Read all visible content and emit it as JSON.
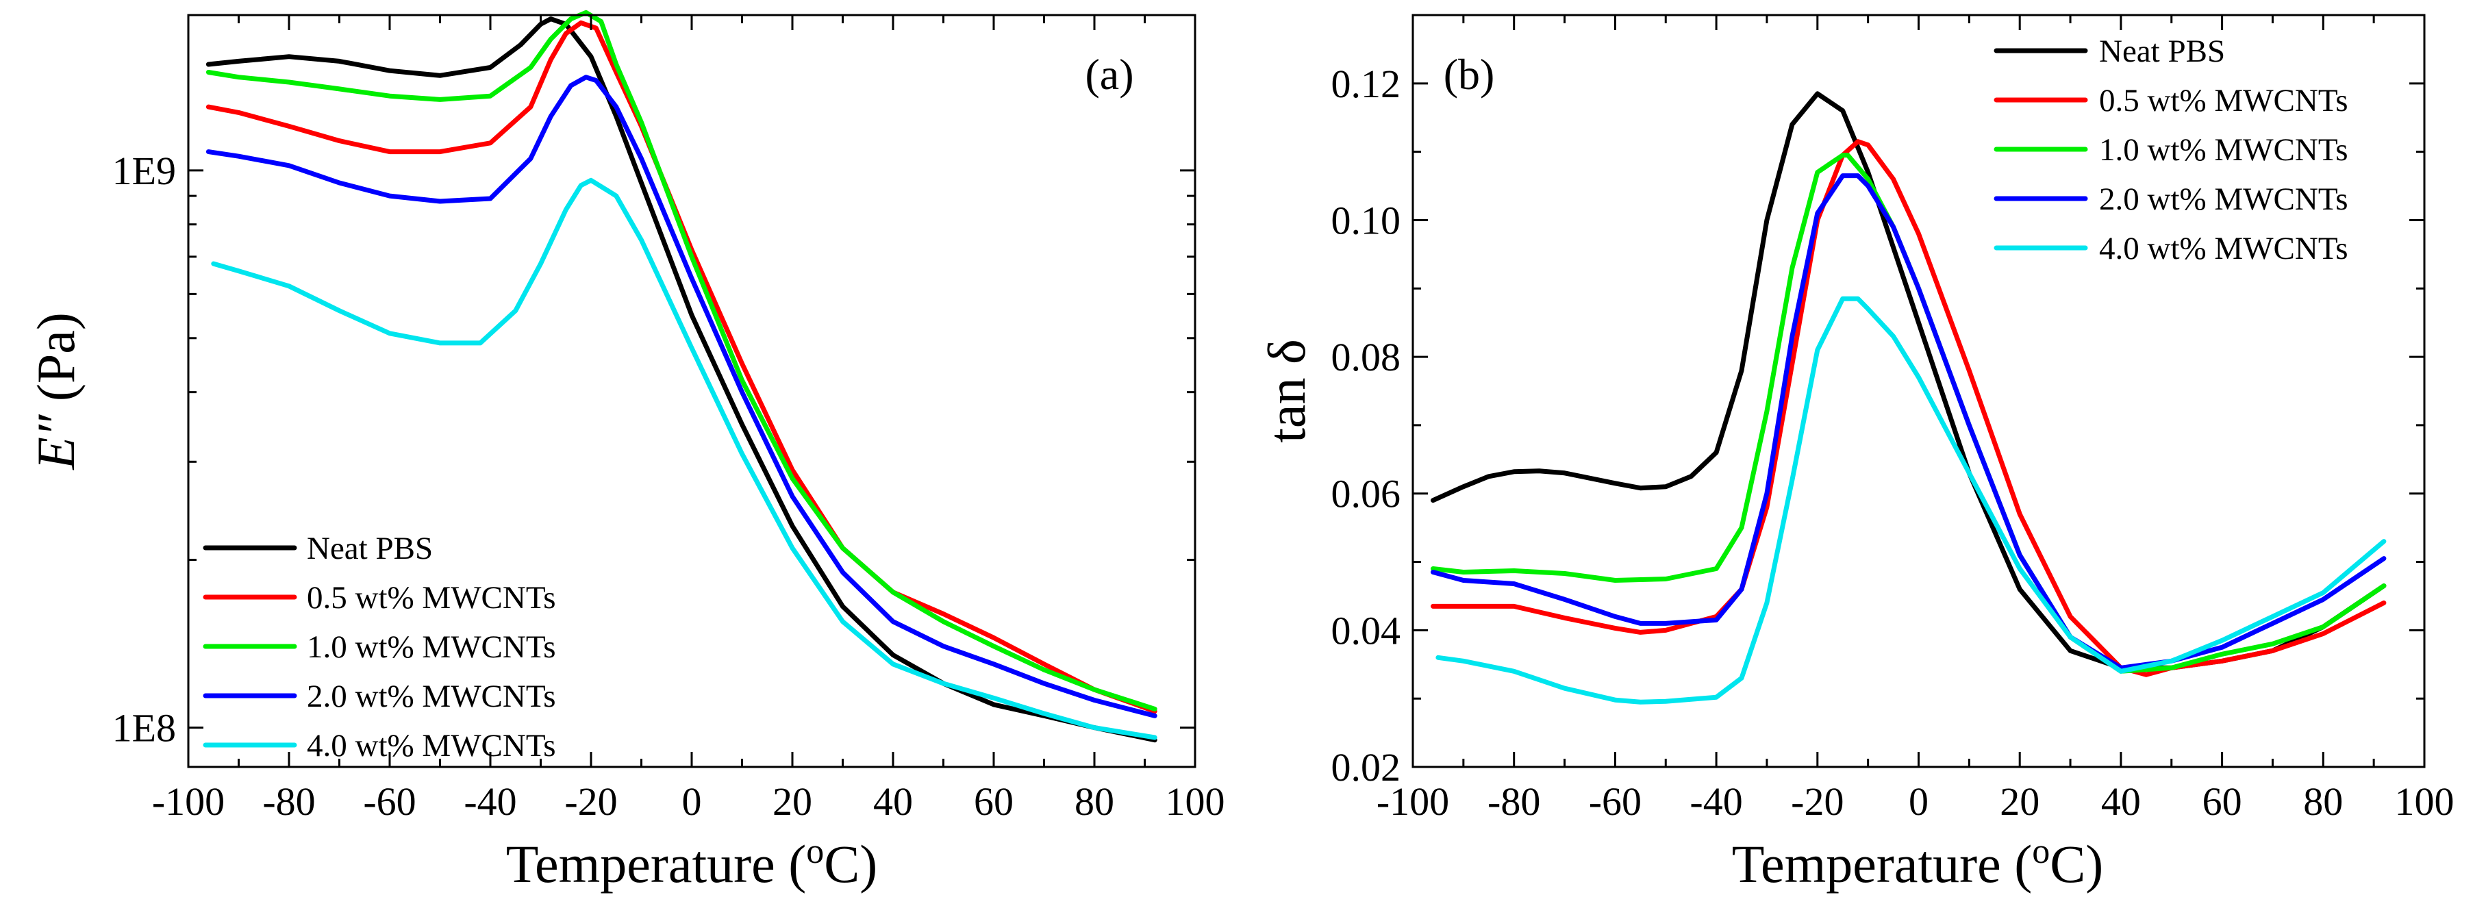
{
  "chart_data": [
    {
      "type": "line",
      "panel_label": "(a)",
      "xlabel": "Temperature (°C)",
      "xlabel_parts": {
        "prefix": "Temperature (",
        "sup": "o",
        "suffix": "C)"
      },
      "ylabel": "E″ (Pa)",
      "ylabel_parts": {
        "symbol": "E″",
        "unit": " (Pa)"
      },
      "x_ticks": [
        "-100",
        "-80",
        "-60",
        "-40",
        "-20",
        "0",
        "20",
        "40",
        "60",
        "80",
        "100"
      ],
      "x_tick_values": [
        -100,
        -80,
        -60,
        -40,
        -20,
        0,
        20,
        40,
        60,
        80,
        100
      ],
      "y_ticks": [
        "1E8",
        "1E9"
      ],
      "y_tick_values": [
        100000000,
        1000000000
      ],
      "xlim": [
        -100,
        100
      ],
      "ylim": [
        85000000,
        1900000000
      ],
      "yscale": "log",
      "legend_position": "lower-left",
      "series": [
        {
          "name": "Neat PBS",
          "color": "#000000",
          "x": [
            -96,
            -90,
            -80,
            -70,
            -60,
            -50,
            -40,
            -34,
            -30,
            -28,
            -25,
            -20,
            -15,
            -10,
            0,
            10,
            20,
            30,
            40,
            50,
            60,
            70,
            80,
            92
          ],
          "y": [
            1550000000.0,
            1570000000.0,
            1600000000.0,
            1570000000.0,
            1510000000.0,
            1480000000.0,
            1530000000.0,
            1680000000.0,
            1830000000.0,
            1870000000.0,
            1830000000.0,
            1600000000.0,
            1250000000.0,
            950000000.0,
            550000000.0,
            350000000.0,
            230000000.0,
            165000000.0,
            135000000.0,
            120000000.0,
            110000000.0,
            105000000.0,
            100000000.0,
            95000000.0
          ]
        },
        {
          "name": "0.5 wt% MWCNTs",
          "color": "#ff0000",
          "x": [
            -96,
            -90,
            -80,
            -70,
            -60,
            -50,
            -40,
            -32,
            -28,
            -25,
            -22,
            -19,
            -15,
            -10,
            0,
            10,
            20,
            30,
            40,
            50,
            60,
            70,
            80,
            92
          ],
          "y": [
            1300000000.0,
            1270000000.0,
            1200000000.0,
            1130000000.0,
            1080000000.0,
            1080000000.0,
            1120000000.0,
            1300000000.0,
            1580000000.0,
            1760000000.0,
            1840000000.0,
            1800000000.0,
            1500000000.0,
            1200000000.0,
            720000000.0,
            450000000.0,
            290000000.0,
            210000000.0,
            175000000.0,
            160000000.0,
            145000000.0,
            130000000.0,
            117000000.0,
            107000000.0
          ]
        },
        {
          "name": "1.0 wt% MWCNTs",
          "color": "#00ee00",
          "x": [
            -96,
            -90,
            -80,
            -70,
            -60,
            -50,
            -40,
            -32,
            -28,
            -24,
            -21,
            -18,
            -15,
            -10,
            0,
            10,
            20,
            30,
            40,
            50,
            60,
            70,
            80,
            92
          ],
          "y": [
            1500000000.0,
            1470000000.0,
            1440000000.0,
            1400000000.0,
            1360000000.0,
            1340000000.0,
            1360000000.0,
            1530000000.0,
            1720000000.0,
            1870000000.0,
            1920000000.0,
            1850000000.0,
            1550000000.0,
            1220000000.0,
            700000000.0,
            420000000.0,
            280000000.0,
            210000000.0,
            175000000.0,
            155000000.0,
            140000000.0,
            127000000.0,
            117000000.0,
            108000000.0
          ]
        },
        {
          "name": "2.0 wt% MWCNTs",
          "color": "#0000ff",
          "x": [
            -96,
            -90,
            -80,
            -70,
            -60,
            -50,
            -40,
            -32,
            -28,
            -24,
            -21,
            -19,
            -15,
            -10,
            0,
            10,
            20,
            30,
            40,
            50,
            60,
            70,
            80,
            92
          ],
          "y": [
            1080000000.0,
            1060000000.0,
            1020000000.0,
            950000000.0,
            900000000.0,
            880000000.0,
            890000000.0,
            1050000000.0,
            1250000000.0,
            1420000000.0,
            1470000000.0,
            1450000000.0,
            1300000000.0,
            1050000000.0,
            640000000.0,
            400000000.0,
            260000000.0,
            190000000.0,
            155000000.0,
            140000000.0,
            130000000.0,
            120000000.0,
            112000000.0,
            105000000.0
          ]
        },
        {
          "name": "4.0 wt% MWCNTs",
          "color": "#00e5ee",
          "x": [
            -95,
            -90,
            -80,
            -70,
            -60,
            -50,
            -42,
            -35,
            -30,
            -25,
            -22,
            -20,
            -15,
            -10,
            0,
            10,
            20,
            30,
            40,
            50,
            60,
            70,
            80,
            92
          ],
          "y": [
            680000000.0,
            660000000.0,
            620000000.0,
            560000000.0,
            510000000.0,
            490000000.0,
            490000000.0,
            560000000.0,
            680000000.0,
            850000000.0,
            940000000.0,
            960000000.0,
            900000000.0,
            750000000.0,
            480000000.0,
            310000000.0,
            210000000.0,
            155000000.0,
            130000000.0,
            120000000.0,
            113000000.0,
            106000000.0,
            100000000.0,
            96000000.0
          ]
        }
      ]
    },
    {
      "type": "line",
      "panel_label": "(b)",
      "xlabel": "Temperature (°C)",
      "xlabel_parts": {
        "prefix": "Temperature (",
        "sup": "o",
        "suffix": "C)"
      },
      "ylabel": "tan δ",
      "x_ticks": [
        "-100",
        "-80",
        "-60",
        "-40",
        "-20",
        "0",
        "20",
        "40",
        "60",
        "80",
        "100"
      ],
      "x_tick_values": [
        -100,
        -80,
        -60,
        -40,
        -20,
        0,
        20,
        40,
        60,
        80,
        100
      ],
      "y_ticks": [
        "0.02",
        "0.04",
        "0.06",
        "0.08",
        "0.10",
        "0.12"
      ],
      "y_tick_values": [
        0.02,
        0.04,
        0.06,
        0.08,
        0.1,
        0.12
      ],
      "xlim": [
        -100,
        100
      ],
      "ylim": [
        0.02,
        0.13
      ],
      "yscale": "linear",
      "legend_position": "top-right",
      "series": [
        {
          "name": "Neat PBS",
          "color": "#000000",
          "x": [
            -96,
            -90,
            -85,
            -80,
            -75,
            -70,
            -60,
            -55,
            -50,
            -45,
            -40,
            -35,
            -30,
            -25,
            -20,
            -15,
            -10,
            -5,
            0,
            10,
            20,
            30,
            40,
            50,
            60,
            70,
            80,
            92
          ],
          "y": [
            0.059,
            0.061,
            0.0625,
            0.0632,
            0.0633,
            0.063,
            0.0615,
            0.0608,
            0.061,
            0.0625,
            0.066,
            0.078,
            0.1,
            0.114,
            0.1185,
            0.116,
            0.107,
            0.096,
            0.085,
            0.063,
            0.046,
            0.037,
            0.0345,
            0.0345,
            0.0355,
            0.037,
            0.0405,
            0.0465
          ]
        },
        {
          "name": "0.5 wt% MWCNTs",
          "color": "#ff0000",
          "x": [
            -96,
            -90,
            -80,
            -70,
            -60,
            -55,
            -50,
            -40,
            -35,
            -30,
            -25,
            -20,
            -15,
            -12,
            -10,
            -5,
            0,
            10,
            20,
            30,
            40,
            45,
            50,
            60,
            70,
            80,
            92
          ],
          "y": [
            0.0435,
            0.0435,
            0.0435,
            0.0418,
            0.0403,
            0.0397,
            0.04,
            0.042,
            0.046,
            0.058,
            0.079,
            0.1,
            0.1095,
            0.1115,
            0.111,
            0.106,
            0.098,
            0.078,
            0.057,
            0.042,
            0.0345,
            0.0335,
            0.0345,
            0.0355,
            0.037,
            0.0395,
            0.044
          ]
        },
        {
          "name": "1.0 wt% MWCNTs",
          "color": "#00ee00",
          "x": [
            -96,
            -90,
            -80,
            -70,
            -60,
            -50,
            -40,
            -35,
            -30,
            -25,
            -20,
            -15,
            -14,
            -10,
            -5,
            0,
            10,
            20,
            30,
            40,
            50,
            60,
            70,
            80,
            92
          ],
          "y": [
            0.049,
            0.0485,
            0.0487,
            0.0483,
            0.0473,
            0.0475,
            0.049,
            0.055,
            0.072,
            0.093,
            0.107,
            0.1095,
            0.1095,
            0.106,
            0.099,
            0.09,
            0.07,
            0.051,
            0.039,
            0.034,
            0.0345,
            0.0365,
            0.038,
            0.0405,
            0.0465
          ]
        },
        {
          "name": "2.0 wt% MWCNTs",
          "color": "#0000ff",
          "x": [
            -96,
            -90,
            -80,
            -70,
            -60,
            -55,
            -50,
            -40,
            -35,
            -30,
            -25,
            -20,
            -15,
            -12,
            -10,
            -5,
            0,
            10,
            20,
            30,
            40,
            50,
            60,
            70,
            80,
            92
          ],
          "y": [
            0.0485,
            0.0473,
            0.0468,
            0.0445,
            0.042,
            0.041,
            0.041,
            0.0415,
            0.046,
            0.06,
            0.083,
            0.101,
            0.1065,
            0.1065,
            0.105,
            0.099,
            0.09,
            0.07,
            0.051,
            0.039,
            0.0345,
            0.0355,
            0.0375,
            0.041,
            0.0445,
            0.0505
          ]
        },
        {
          "name": "4.0 wt% MWCNTs",
          "color": "#00e5ee",
          "x": [
            -95,
            -90,
            -80,
            -70,
            -60,
            -55,
            -50,
            -40,
            -35,
            -30,
            -25,
            -20,
            -15,
            -12,
            -10,
            -5,
            0,
            10,
            20,
            30,
            40,
            50,
            60,
            70,
            80,
            92
          ],
          "y": [
            0.036,
            0.0355,
            0.034,
            0.0315,
            0.0298,
            0.0295,
            0.0296,
            0.0302,
            0.033,
            0.044,
            0.062,
            0.081,
            0.0885,
            0.0885,
            0.087,
            0.083,
            0.077,
            0.063,
            0.049,
            0.039,
            0.034,
            0.0355,
            0.0385,
            0.042,
            0.0455,
            0.053
          ]
        }
      ]
    }
  ]
}
